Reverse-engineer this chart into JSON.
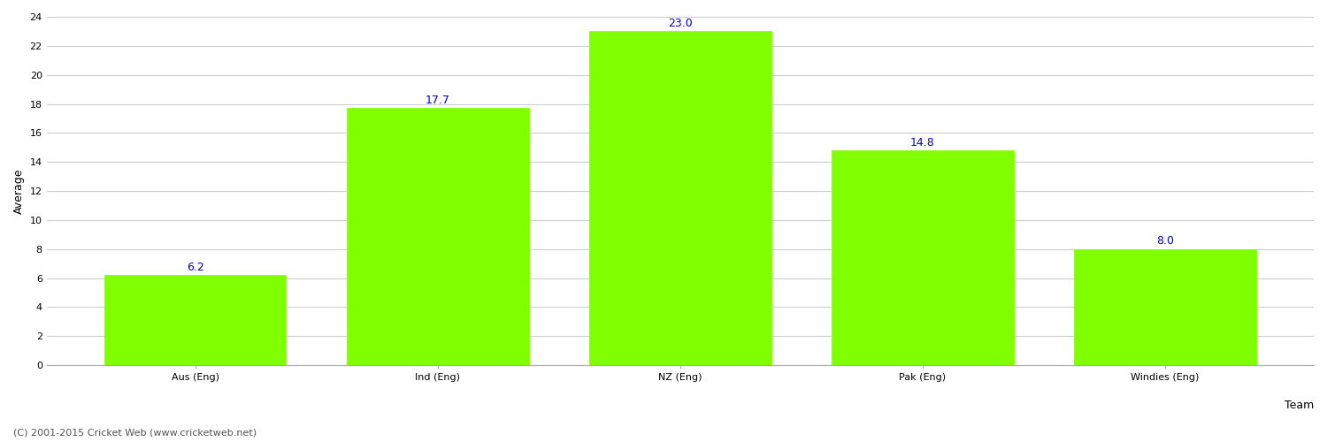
{
  "categories": [
    "Aus (Eng)",
    "Ind (Eng)",
    "NZ (Eng)",
    "Pak (Eng)",
    "Windies (Eng)"
  ],
  "values": [
    6.2,
    17.7,
    23.0,
    14.8,
    8.0
  ],
  "bar_color": "#7fff00",
  "bar_edge_color": "#7fff00",
  "value_label_color": "#0000cc",
  "value_label_fontsize": 9,
  "xlabel": "Team",
  "ylabel": "Average",
  "ylim": [
    0,
    24
  ],
  "yticks": [
    0,
    2,
    4,
    6,
    8,
    10,
    12,
    14,
    16,
    18,
    20,
    22,
    24
  ],
  "grid_color": "#cccccc",
  "background_color": "#ffffff",
  "tick_label_fontsize": 8,
  "axis_label_fontsize": 9,
  "footer_text": "(C) 2001-2015 Cricket Web (www.cricketweb.net)",
  "footer_fontsize": 8,
  "footer_color": "#555555"
}
